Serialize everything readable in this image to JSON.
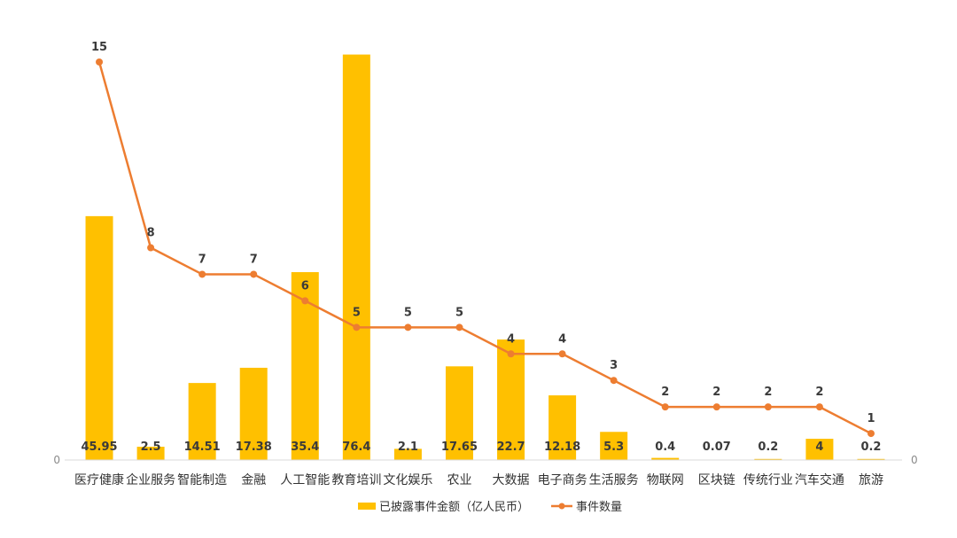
{
  "chart_data": {
    "type": "bar+line",
    "categories": [
      "医疗健康",
      "企业服务",
      "智能制造",
      "金融",
      "人工智能",
      "教育培训",
      "文化娱乐",
      "农业",
      "大数据",
      "电子商务",
      "生活服务",
      "物联网",
      "区块链",
      "传统行业",
      "汽车交通",
      "旅游"
    ],
    "series": [
      {
        "name": "已披露事件金额（亿人民币）",
        "type": "bar",
        "axis": "left",
        "color": "#FFC000",
        "values": [
          45.95,
          2.5,
          14.51,
          17.38,
          35.4,
          76.4,
          2.1,
          17.65,
          22.7,
          12.18,
          5.3,
          0.4,
          0.07,
          0.2,
          4,
          0.2
        ],
        "value_labels": [
          "45.95",
          "2.5",
          "14.51",
          "17.38",
          "35.4",
          "76.4",
          "2.1",
          "17.65",
          "22.7",
          "12.18",
          "5.3",
          "0.4",
          "0.07",
          "0.2",
          "4",
          "0.2"
        ]
      },
      {
        "name": "事件数量",
        "type": "line",
        "axis": "right",
        "color": "#ED7D31",
        "values": [
          15,
          8,
          7,
          7,
          6,
          5,
          5,
          5,
          4,
          4,
          3,
          2,
          2,
          2,
          2,
          1
        ],
        "value_labels": [
          "15",
          "8",
          "7",
          "7",
          "6",
          "5",
          "5",
          "5",
          "4",
          "4",
          "3",
          "2",
          "2",
          "2",
          "2",
          "1"
        ]
      }
    ],
    "y_left": {
      "min_label": "0",
      "ylim": [
        0,
        80
      ]
    },
    "y_right": {
      "min_label": "0",
      "ylim": [
        0,
        16
      ]
    },
    "legend": {
      "position": "bottom"
    }
  }
}
